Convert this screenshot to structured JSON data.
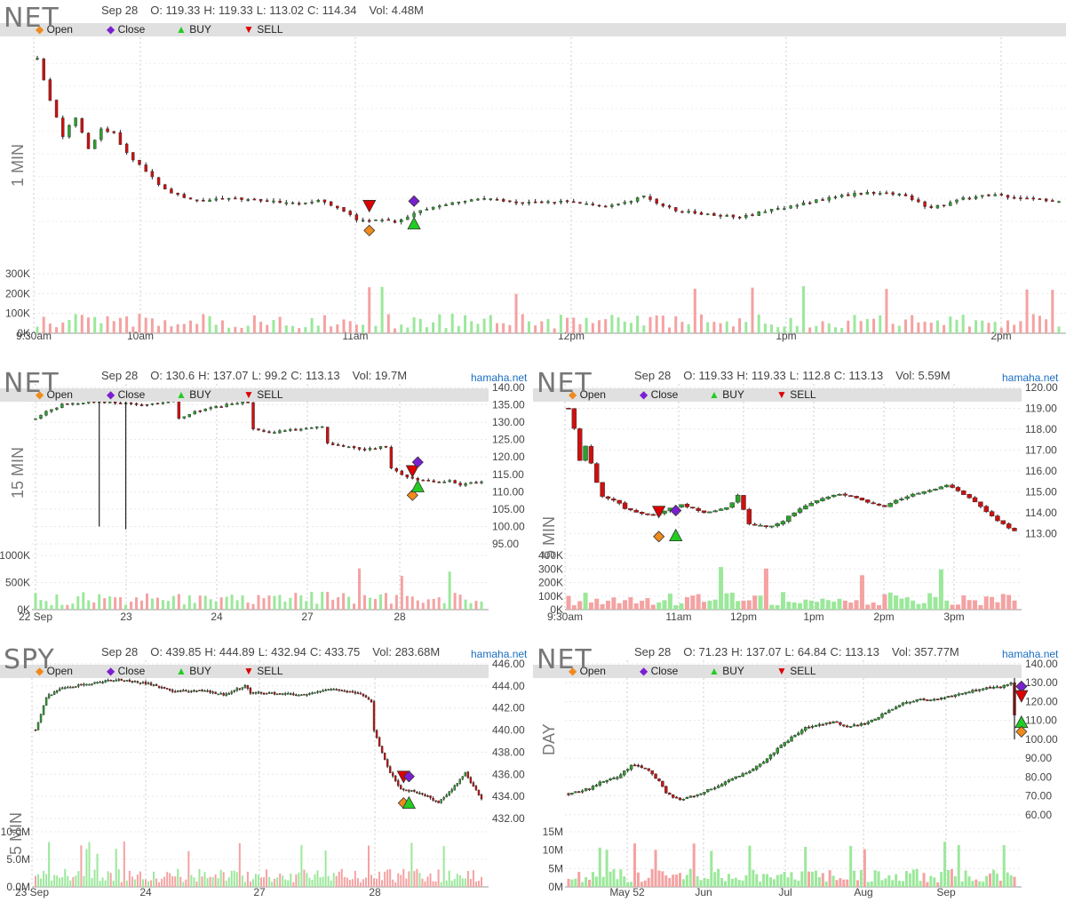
{
  "source": "hamaha.net",
  "legend": {
    "open": "Open",
    "close": "Close",
    "buy": "BUY",
    "sell": "SELL"
  },
  "colors": {
    "up": "#2ea02e",
    "down": "#cc1111",
    "vol_up": "#9be89b",
    "vol_down": "#f4a2a2",
    "open": "#f08a1c",
    "close": "#7a1fd0",
    "buy": "#22cc22",
    "sell": "#dd0000",
    "bar": "#e0e0e0",
    "grid": "#cccccc"
  },
  "panels": [
    {
      "id": "p1",
      "symbol": "NET",
      "timeframe": "1 MIN",
      "date": "Sep 28",
      "o": "O: 119.33",
      "h": "H: 119.33",
      "l": "L: 113.02",
      "c": "C: 114.34",
      "vol": "Vol: 4.48M",
      "show_source": false
    },
    {
      "id": "p2",
      "symbol": "NET",
      "timeframe": "15 MIN",
      "date": "Sep 28",
      "o": "O: 130.6",
      "h": "H: 137.07",
      "l": "L: 99.2",
      "c": "C: 113.13",
      "vol": "Vol: 19.7M",
      "show_source": true
    },
    {
      "id": "p3",
      "symbol": "NET",
      "timeframe": "5 MIN",
      "date": "Sep 28",
      "o": "O: 119.33",
      "h": "H: 119.33",
      "l": "L: 112.8",
      "c": "C: 113.13",
      "vol": "Vol: 5.59M",
      "show_source": true
    },
    {
      "id": "p4",
      "symbol": "SPY",
      "timeframe": "5 MIN",
      "date": "Sep 28",
      "o": "O: 439.85",
      "h": "H: 444.89",
      "l": "L: 432.94",
      "c": "C: 433.75",
      "vol": "Vol: 283.68M",
      "show_source": true
    },
    {
      "id": "p5",
      "symbol": "NET",
      "timeframe": "DAY",
      "date": "Sep 28",
      "o": "O: 71.23",
      "h": "H: 137.07",
      "l": "L: 64.84",
      "c": "C: 113.13",
      "vol": "Vol: 357.77M",
      "show_source": true
    }
  ],
  "chart_data": [
    {
      "type": "candlestick",
      "id": "p1",
      "symbol": "NET",
      "interval": "1 MIN",
      "x_ticks": [
        "9:30am",
        "10am",
        "11am",
        "12pm",
        "1pm",
        "2pm"
      ],
      "y_tick_labels": [],
      "price_ylim": [
        111,
        121
      ],
      "volume_ticks": [
        "300K",
        "200K",
        "100K",
        "0K"
      ],
      "volume_ylim": [
        0,
        330000
      ],
      "close_path": [
        [
          0,
          120.2
        ],
        [
          2,
          118.4
        ],
        [
          4,
          116.8
        ],
        [
          6,
          117.6
        ],
        [
          8,
          116.2
        ],
        [
          10,
          117.1
        ],
        [
          12,
          116.9
        ],
        [
          14,
          116.0
        ],
        [
          16,
          115.5
        ],
        [
          20,
          114.4
        ],
        [
          25,
          113.9
        ],
        [
          30,
          114.0
        ],
        [
          40,
          113.8
        ],
        [
          45,
          113.9
        ],
        [
          50,
          113.1
        ],
        [
          56,
          113.0
        ],
        [
          60,
          113.5
        ],
        [
          65,
          113.8
        ],
        [
          70,
          114.0
        ],
        [
          75,
          113.8
        ],
        [
          80,
          113.9
        ],
        [
          85,
          113.8
        ],
        [
          90,
          113.7
        ],
        [
          95,
          114.1
        ],
        [
          100,
          113.5
        ],
        [
          105,
          113.3
        ],
        [
          110,
          113.2
        ],
        [
          115,
          113.5
        ],
        [
          120,
          113.8
        ],
        [
          125,
          114.1
        ],
        [
          130,
          114.3
        ],
        [
          135,
          114.2
        ],
        [
          140,
          113.6
        ],
        [
          145,
          114.0
        ],
        [
          150,
          114.2
        ],
        [
          155,
          114.0
        ],
        [
          160,
          113.9
        ]
      ],
      "markers": [
        {
          "kind": "sell",
          "x": 52,
          "price": 113.7
        },
        {
          "kind": "open",
          "x": 52,
          "price": 112.6
        },
        {
          "kind": "close",
          "x": 59,
          "price": 113.9
        },
        {
          "kind": "buy",
          "x": 59,
          "price": 112.9
        }
      ]
    },
    {
      "type": "candlestick",
      "id": "p2",
      "symbol": "NET",
      "interval": "15 MIN",
      "x_ticks": [
        "22 Sep",
        "23",
        "24",
        "27",
        "28"
      ],
      "y_tick_labels": [
        "140.00",
        "135.00",
        "130.00",
        "125.00",
        "120.00",
        "115.00",
        "110.00",
        "105.00",
        "100.00",
        "95.00"
      ],
      "price_ylim": [
        95,
        140
      ],
      "volume_ticks": [
        "1000K",
        "500K",
        "0K"
      ],
      "volume_ylim": [
        0,
        1000000
      ],
      "close_path": [
        [
          0,
          131
        ],
        [
          2,
          133
        ],
        [
          5,
          135
        ],
        [
          10,
          136
        ],
        [
          16,
          135.5
        ],
        [
          20,
          135
        ],
        [
          26,
          136
        ],
        [
          27,
          131
        ],
        [
          30,
          133
        ],
        [
          36,
          135
        ],
        [
          40,
          136
        ],
        [
          41,
          128
        ],
        [
          44,
          127
        ],
        [
          50,
          128
        ],
        [
          54,
          129
        ],
        [
          55,
          124
        ],
        [
          58,
          123
        ],
        [
          62,
          122
        ],
        [
          66,
          123
        ],
        [
          67,
          117
        ],
        [
          70,
          114
        ],
        [
          74,
          113
        ],
        [
          78,
          113
        ],
        [
          80,
          112
        ],
        [
          84,
          113
        ]
      ],
      "wicks": [
        {
          "x": 12,
          "low": 100
        },
        {
          "x": 17,
          "low": 99.2
        }
      ],
      "markers": [
        {
          "kind": "sell",
          "x": 71,
          "price": 116
        },
        {
          "kind": "close",
          "x": 72,
          "price": 118.5
        },
        {
          "kind": "open",
          "x": 71,
          "price": 109
        },
        {
          "kind": "buy",
          "x": 72,
          "price": 111.5
        }
      ]
    },
    {
      "type": "candlestick",
      "id": "p3",
      "symbol": "NET",
      "interval": "5 MIN",
      "x_ticks": [
        "9:30am",
        "11am",
        "12pm",
        "1pm",
        "2pm",
        "3pm"
      ],
      "y_tick_labels": [
        "120.00",
        "119.00",
        "118.00",
        "117.00",
        "116.00",
        "115.00",
        "114.00",
        "113.00"
      ],
      "price_ylim": [
        112.5,
        120
      ],
      "volume_ticks": [
        "400K",
        "300K",
        "200K",
        "100K",
        "0K"
      ],
      "volume_ylim": [
        0,
        400000
      ],
      "close_path": [
        [
          0,
          119
        ],
        [
          1,
          118
        ],
        [
          2,
          116.5
        ],
        [
          3,
          117.2
        ],
        [
          4,
          116.4
        ],
        [
          5,
          115.4
        ],
        [
          6,
          114.8
        ],
        [
          8,
          114.6
        ],
        [
          10,
          114.2
        ],
        [
          12,
          114.0
        ],
        [
          15,
          113.9
        ],
        [
          18,
          114.2
        ],
        [
          20,
          114.4
        ],
        [
          24,
          114.0
        ],
        [
          28,
          114.2
        ],
        [
          30,
          114.8
        ],
        [
          32,
          113.5
        ],
        [
          35,
          113.3
        ],
        [
          38,
          113.6
        ],
        [
          40,
          114.0
        ],
        [
          44,
          114.6
        ],
        [
          48,
          114.9
        ],
        [
          52,
          114.6
        ],
        [
          56,
          114.3
        ],
        [
          60,
          114.8
        ],
        [
          64,
          115.1
        ],
        [
          67,
          115.3
        ],
        [
          70,
          114.9
        ],
        [
          73,
          114.3
        ],
        [
          76,
          113.6
        ],
        [
          79,
          113.1
        ]
      ],
      "markers": [
        {
          "kind": "sell",
          "x": 16,
          "price": 114.05
        },
        {
          "kind": "close",
          "x": 19,
          "price": 114.1
        },
        {
          "kind": "open",
          "x": 16,
          "price": 112.85
        },
        {
          "kind": "buy",
          "x": 19,
          "price": 112.9
        }
      ]
    },
    {
      "type": "candlestick",
      "id": "p4",
      "symbol": "SPY",
      "interval": "5 MIN",
      "x_ticks": [
        "23 Sep",
        "24",
        "27",
        "28"
      ],
      "y_tick_labels": [
        "446.00",
        "444.00",
        "442.00",
        "440.00",
        "438.00",
        "436.00",
        "434.00",
        "432.00"
      ],
      "price_ylim": [
        432,
        446
      ],
      "volume_ticks": [
        "10.0M",
        "5.0M",
        "0.0M"
      ],
      "volume_ylim": [
        0,
        10000000
      ],
      "close_path": [
        [
          0,
          440
        ],
        [
          4,
          443
        ],
        [
          10,
          443.8
        ],
        [
          20,
          444.2
        ],
        [
          30,
          444.6
        ],
        [
          40,
          444.3
        ],
        [
          52,
          443.5
        ],
        [
          62,
          443.6
        ],
        [
          70,
          443.2
        ],
        [
          78,
          444.0
        ],
        [
          80,
          443.4
        ],
        [
          90,
          443.3
        ],
        [
          100,
          443.2
        ],
        [
          110,
          443.7
        ],
        [
          120,
          443.4
        ],
        [
          125,
          442.6
        ],
        [
          126,
          440
        ],
        [
          128,
          438.5
        ],
        [
          132,
          436.2
        ],
        [
          136,
          434.6
        ],
        [
          140,
          434.5
        ],
        [
          146,
          434.0
        ],
        [
          150,
          433.4
        ],
        [
          156,
          434.9
        ],
        [
          160,
          436.1
        ],
        [
          164,
          434.5
        ],
        [
          166,
          433.7
        ]
      ],
      "markers": [
        {
          "kind": "sell",
          "x": 137,
          "price": 435.8
        },
        {
          "kind": "close",
          "x": 139,
          "price": 435.8
        },
        {
          "kind": "open",
          "x": 137,
          "price": 433.4
        },
        {
          "kind": "buy",
          "x": 139,
          "price": 433.4
        }
      ]
    },
    {
      "type": "candlestick",
      "id": "p5",
      "symbol": "NET",
      "interval": "DAY",
      "x_ticks": [
        "May 52",
        "Jun",
        "Jul",
        "Aug",
        "Sep"
      ],
      "y_tick_labels": [
        "140.00",
        "130.00",
        "120.00",
        "110.00",
        "100.00",
        "90.00",
        "80.00",
        "70.00",
        "60.00"
      ],
      "price_ylim": [
        58,
        140
      ],
      "volume_ticks": [
        "15M",
        "10M",
        "5M",
        "0M"
      ],
      "volume_ylim": [
        0,
        15000000
      ],
      "close_path": [
        [
          0,
          71
        ],
        [
          6,
          74
        ],
        [
          10,
          78
        ],
        [
          14,
          80
        ],
        [
          18,
          86
        ],
        [
          22,
          85
        ],
        [
          26,
          78
        ],
        [
          28,
          71
        ],
        [
          32,
          68
        ],
        [
          36,
          70
        ],
        [
          40,
          73
        ],
        [
          44,
          76
        ],
        [
          48,
          80
        ],
        [
          52,
          83
        ],
        [
          56,
          88
        ],
        [
          60,
          95
        ],
        [
          64,
          101
        ],
        [
          68,
          106
        ],
        [
          72,
          108
        ],
        [
          76,
          109
        ],
        [
          80,
          107
        ],
        [
          84,
          108
        ],
        [
          88,
          111
        ],
        [
          92,
          115
        ],
        [
          96,
          119
        ],
        [
          100,
          121
        ],
        [
          104,
          121
        ],
        [
          108,
          122
        ],
        [
          112,
          124
        ],
        [
          116,
          126
        ],
        [
          120,
          127
        ],
        [
          124,
          128
        ],
        [
          127,
          130
        ],
        [
          128,
          113
        ]
      ],
      "wicks": [
        {
          "x": 128,
          "low": 100,
          "high": 137
        }
      ],
      "markers": [
        {
          "kind": "close",
          "x": 130,
          "price": 128
        },
        {
          "kind": "sell",
          "x": 130,
          "price": 123
        },
        {
          "kind": "buy",
          "x": 130,
          "price": 109
        },
        {
          "kind": "open",
          "x": 130,
          "price": 104
        }
      ]
    }
  ]
}
